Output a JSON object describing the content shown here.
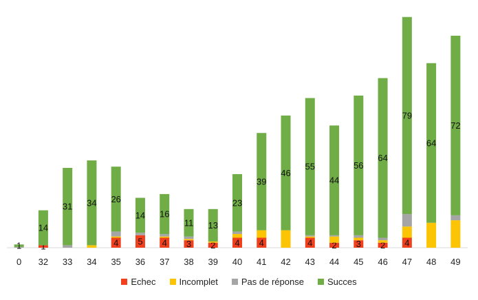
{
  "chart_data": {
    "type": "bar",
    "stacked": true,
    "categories": [
      "0",
      "32",
      "33",
      "34",
      "35",
      "36",
      "37",
      "38",
      "39",
      "40",
      "41",
      "42",
      "43",
      "44",
      "45",
      "46",
      "47",
      "48",
      "49"
    ],
    "series": [
      {
        "name": "Echec",
        "color": "#f0401d",
        "values": [
          0,
          1,
          0,
          0,
          4,
          5,
          4,
          3,
          2,
          4,
          4,
          0,
          4,
          2,
          3,
          2,
          4,
          0,
          0
        ],
        "labels": [
          "",
          "1",
          "",
          "",
          "4",
          "5",
          "4",
          "3",
          "2",
          "4",
          "4",
          "",
          "4",
          "2",
          "3",
          "2",
          "4",
          "",
          ""
        ]
      },
      {
        "name": "Incomplet",
        "color": "#fbc404",
        "values": [
          0,
          0,
          0,
          1,
          0.5,
          0,
          0.5,
          0.5,
          0.5,
          1.5,
          3,
          7,
          0.5,
          2.5,
          1,
          1,
          4.5,
          10,
          11
        ],
        "labels": [
          "",
          "",
          "",
          "",
          "",
          "",
          "",
          "",
          "",
          "",
          "",
          "",
          "",
          "",
          "",
          "",
          "",
          "",
          ""
        ]
      },
      {
        "name": "Pas de réponse",
        "color": "#a5a5a5",
        "values": [
          0.3,
          0,
          1,
          0,
          2,
          1,
          1,
          1,
          0,
          1,
          0,
          0,
          0.5,
          0.5,
          1,
          1,
          5,
          0,
          2
        ],
        "labels": [
          "",
          "",
          "",
          "",
          "",
          "",
          "",
          "",
          "",
          "",
          "",
          "",
          "",
          "",
          "",
          "",
          "",
          "",
          ""
        ]
      },
      {
        "name": "Succes",
        "color": "#70ad47",
        "values": [
          1,
          14,
          31,
          34,
          26,
          14,
          16,
          11,
          13,
          23,
          39,
          46,
          55,
          44,
          56,
          64,
          79,
          64,
          72
        ],
        "labels": [
          "1",
          "14",
          "31",
          "34",
          "26",
          "14",
          "16",
          "11",
          "13",
          "23",
          "39",
          "46",
          "55",
          "44",
          "56",
          "64",
          "79",
          "64",
          "72"
        ]
      }
    ],
    "ylim": [
      0,
      96
    ],
    "grid": false,
    "legend_position": "bottom"
  }
}
